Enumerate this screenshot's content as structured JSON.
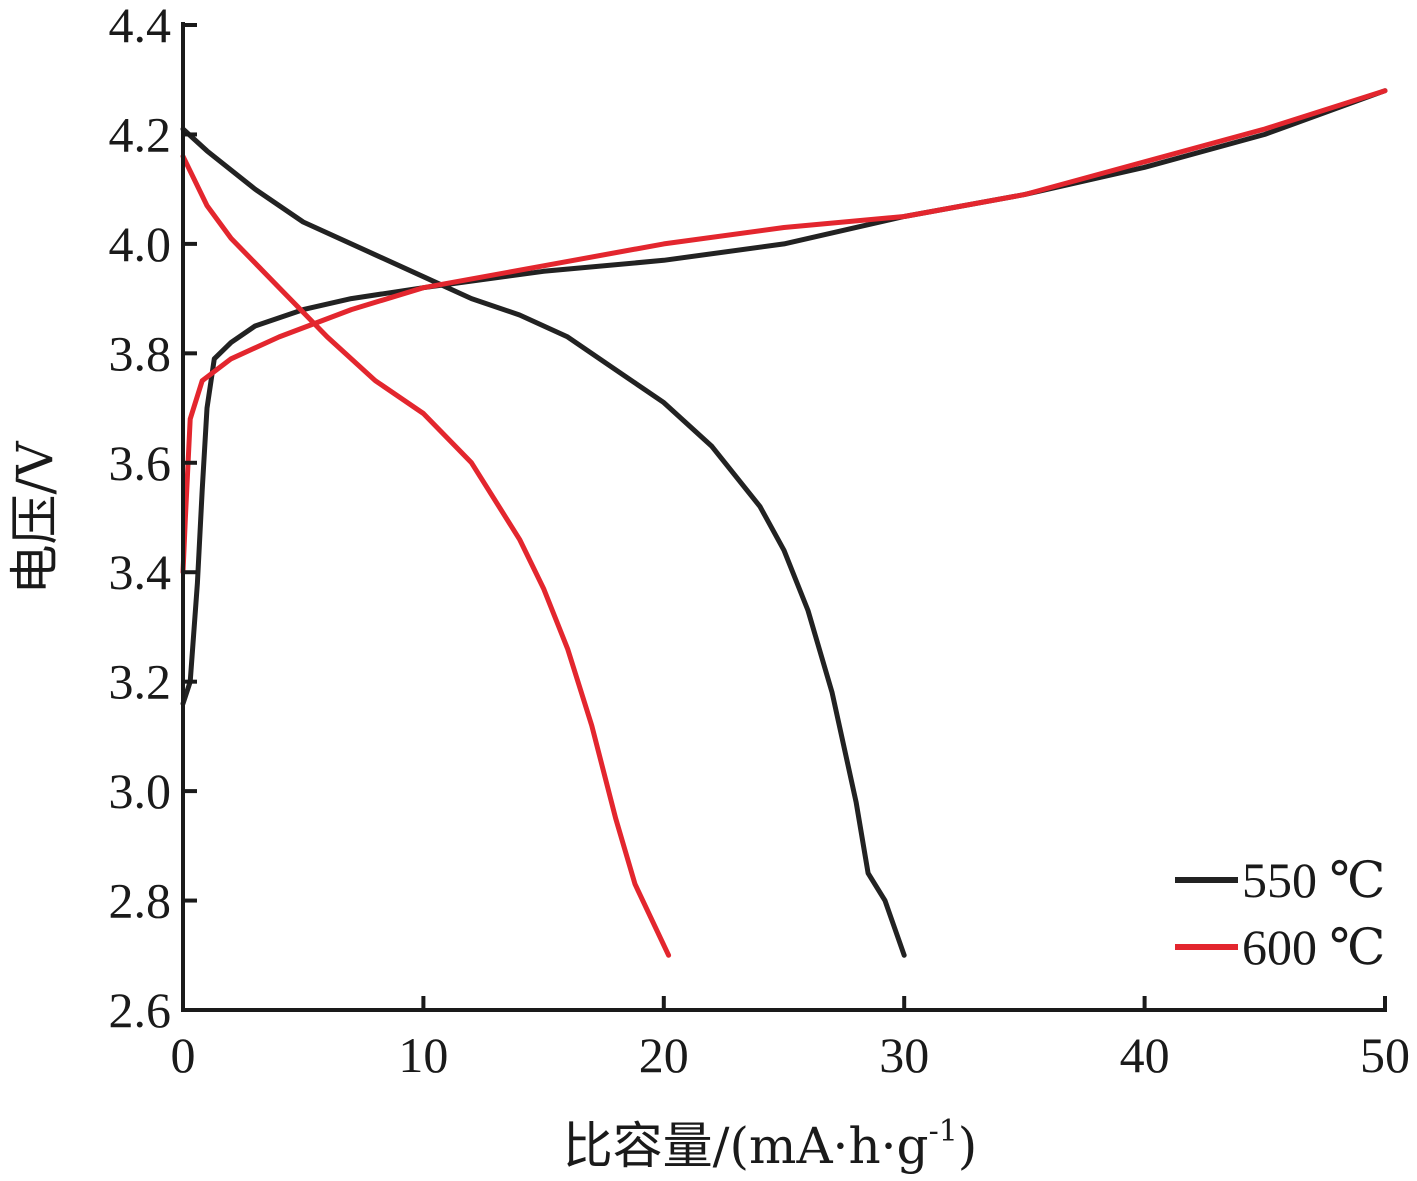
{
  "chart_data": {
    "type": "line",
    "title": "",
    "xlabel": "比容量/(mA·h·g",
    "xlabel_sup": "-1",
    "xlabel_close": ")",
    "ylabel": "电压/V",
    "xlim": [
      0,
      50
    ],
    "ylim": [
      2.6,
      4.4
    ],
    "xticks": [
      0,
      10,
      20,
      30,
      40,
      50
    ],
    "yticks": [
      2.6,
      2.8,
      3.0,
      3.2,
      3.4,
      3.6,
      3.8,
      4.0,
      4.2,
      4.4
    ],
    "xtick_labels": [
      "0",
      "10",
      "20",
      "30",
      "40",
      "50"
    ],
    "ytick_labels": [
      "2.6",
      "2.8",
      "3.0",
      "3.2",
      "3.4",
      "3.6",
      "3.8",
      "4.0",
      "4.2",
      "4.4"
    ],
    "grid": false,
    "legend_position": "bottom-right",
    "series": [
      {
        "name": "550 ℃",
        "color": "#222222",
        "segments": [
          [
            [
              0,
              3.16
            ],
            [
              0.3,
              3.2
            ],
            [
              0.6,
              3.38
            ],
            [
              0.8,
              3.55
            ],
            [
              1.0,
              3.7
            ],
            [
              1.3,
              3.79
            ],
            [
              2,
              3.82
            ],
            [
              3,
              3.85
            ],
            [
              5,
              3.88
            ],
            [
              7,
              3.9
            ],
            [
              10,
              3.92
            ],
            [
              15,
              3.95
            ],
            [
              20,
              3.97
            ],
            [
              25,
              4.0
            ],
            [
              30,
              4.05
            ],
            [
              35,
              4.09
            ],
            [
              40,
              4.14
            ],
            [
              45,
              4.2
            ],
            [
              50,
              4.28
            ]
          ],
          [
            [
              0,
              4.21
            ],
            [
              1,
              4.17
            ],
            [
              3,
              4.1
            ],
            [
              5,
              4.04
            ],
            [
              8,
              3.98
            ],
            [
              10,
              3.94
            ],
            [
              12,
              3.9
            ],
            [
              14,
              3.87
            ],
            [
              16,
              3.83
            ],
            [
              18,
              3.77
            ],
            [
              20,
              3.71
            ],
            [
              22,
              3.63
            ],
            [
              24,
              3.52
            ],
            [
              25,
              3.44
            ],
            [
              26,
              3.33
            ],
            [
              27,
              3.18
            ],
            [
              28,
              2.98
            ],
            [
              28.5,
              2.85
            ],
            [
              29.2,
              2.8
            ],
            [
              30,
              2.7
            ]
          ]
        ]
      },
      {
        "name": "600 ℃",
        "color": "#e3262e",
        "segments": [
          [
            [
              0,
              3.4
            ],
            [
              0.1,
              3.5
            ],
            [
              0.3,
              3.68
            ],
            [
              0.8,
              3.75
            ],
            [
              2,
              3.79
            ],
            [
              4,
              3.83
            ],
            [
              7,
              3.88
            ],
            [
              10,
              3.92
            ],
            [
              15,
              3.96
            ],
            [
              20,
              4.0
            ],
            [
              25,
              4.03
            ],
            [
              30,
              4.05
            ],
            [
              35,
              4.09
            ],
            [
              40,
              4.15
            ],
            [
              45,
              4.21
            ],
            [
              50,
              4.28
            ]
          ],
          [
            [
              0,
              4.16
            ],
            [
              1,
              4.07
            ],
            [
              2,
              4.01
            ],
            [
              4,
              3.92
            ],
            [
              6,
              3.83
            ],
            [
              8,
              3.75
            ],
            [
              10,
              3.69
            ],
            [
              12,
              3.6
            ],
            [
              14,
              3.46
            ],
            [
              15,
              3.37
            ],
            [
              16,
              3.26
            ],
            [
              17,
              3.12
            ],
            [
              18,
              2.95
            ],
            [
              18.8,
              2.83
            ],
            [
              20.2,
              2.7
            ]
          ]
        ]
      }
    ]
  }
}
